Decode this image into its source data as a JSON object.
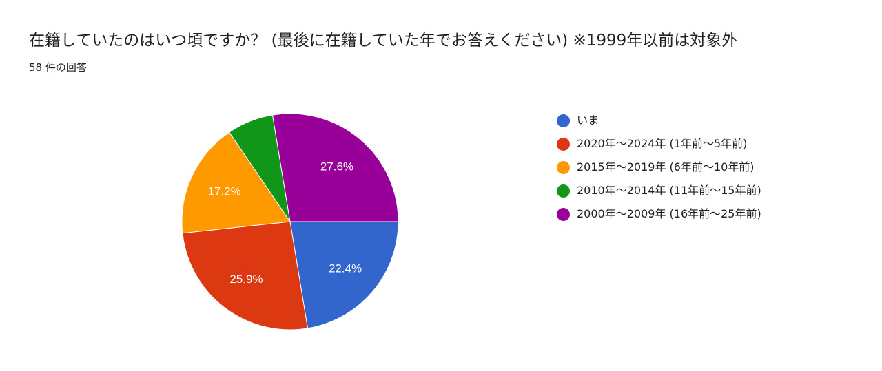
{
  "header": {
    "title": "在籍していたのはいつ頃ですか？ (最後に在籍していた年でお答えください) ※1999年以前は対象外",
    "response_count": "58 件の回答"
  },
  "chart_data": {
    "type": "pie",
    "start_angle_deg": 90,
    "direction": "clockwise",
    "legend_position": "right",
    "total_responses": 58,
    "slices": [
      {
        "name": "いま",
        "value": 22.4,
        "label": "22.4%",
        "color": "#3366cc"
      },
      {
        "name": "2020年〜2024年 (1年前〜5年前)",
        "value": 25.9,
        "label": "25.9%",
        "color": "#dc3912"
      },
      {
        "name": "2015年〜2019年 (6年前〜10年前)",
        "value": 17.2,
        "label": "17.2%",
        "color": "#ff9900"
      },
      {
        "name": "2010年〜2014年 (11年前〜15年前)",
        "value": 6.9,
        "label": "",
        "color": "#109618"
      },
      {
        "name": "2000年〜2009年 (16年前〜25年前)",
        "value": 27.6,
        "label": "27.6%",
        "color": "#990099"
      }
    ]
  }
}
